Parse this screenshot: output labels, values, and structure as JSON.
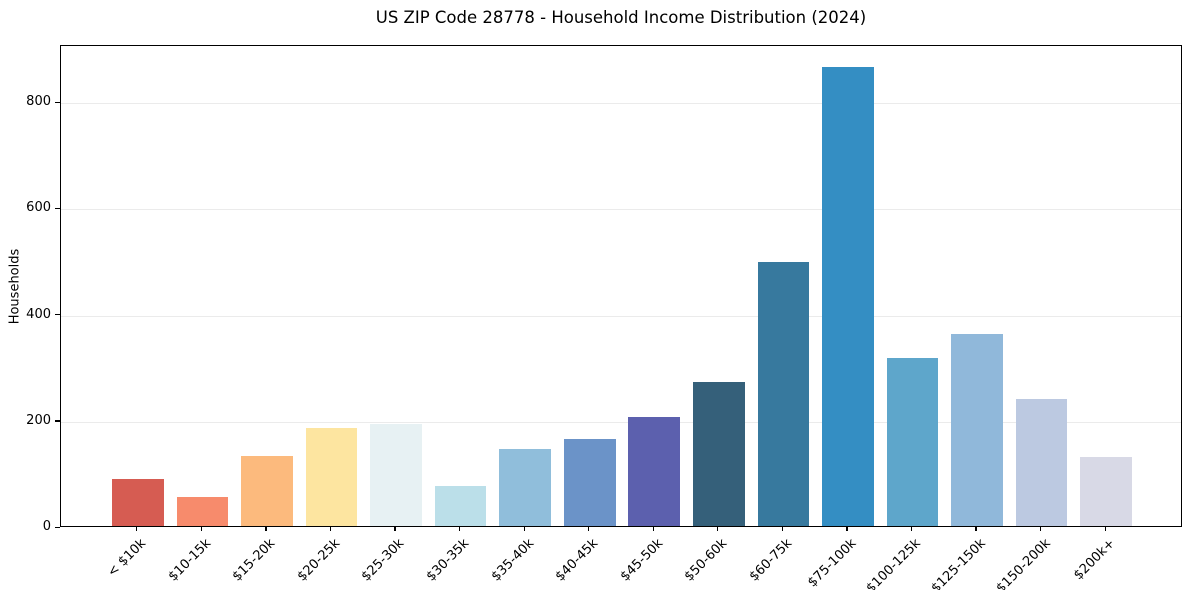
{
  "title": "US ZIP Code 28778 - Household Income Distribution (2024)",
  "chart_data": {
    "type": "bar",
    "title": "US ZIP Code 28778 - Household Income Distribution (2024)",
    "xlabel": "",
    "ylabel": "Households",
    "categories": [
      "< $10k",
      "$10-15k",
      "$15-20k",
      "$20-25k",
      "$25-30k",
      "$30-35k",
      "$35-40k",
      "$40-45k",
      "$45-50k",
      "$50-60k",
      "$60-75k",
      "$75-100k",
      "$100-125k",
      "$125-150k",
      "$150-200k",
      "$200k+"
    ],
    "values": [
      88,
      54,
      132,
      185,
      193,
      75,
      145,
      163,
      206,
      272,
      497,
      864,
      317,
      362,
      239,
      130
    ],
    "bar_colors": [
      "#d65c52",
      "#f78b6c",
      "#fcba7d",
      "#fde5a0",
      "#e7f1f3",
      "#bbdfe9",
      "#90bedb",
      "#6b93c8",
      "#5c60ae",
      "#35607a",
      "#37799e",
      "#348ec3",
      "#5ea6cb",
      "#90b8da",
      "#bcc9e1",
      "#d8d9e6"
    ],
    "yticks": [
      0,
      200,
      400,
      600,
      800
    ],
    "ylim": [
      0,
      908
    ],
    "grid": "horizontal",
    "grid_color": "#ebebeb",
    "background": "#ffffff",
    "legend": "none"
  }
}
